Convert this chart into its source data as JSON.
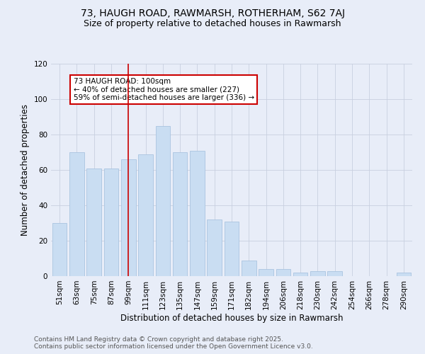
{
  "title_line1": "73, HAUGH ROAD, RAWMARSH, ROTHERHAM, S62 7AJ",
  "title_line2": "Size of property relative to detached houses in Rawmarsh",
  "xlabel": "Distribution of detached houses by size in Rawmarsh",
  "ylabel": "Number of detached properties",
  "categories": [
    "51sqm",
    "63sqm",
    "75sqm",
    "87sqm",
    "99sqm",
    "111sqm",
    "123sqm",
    "135sqm",
    "147sqm",
    "159sqm",
    "171sqm",
    "182sqm",
    "194sqm",
    "206sqm",
    "218sqm",
    "230sqm",
    "242sqm",
    "254sqm",
    "266sqm",
    "278sqm",
    "290sqm"
  ],
  "values": [
    30,
    70,
    61,
    61,
    66,
    69,
    85,
    70,
    71,
    32,
    31,
    9,
    4,
    4,
    2,
    3,
    3,
    0,
    0,
    0,
    2
  ],
  "bar_color": "#c9ddf2",
  "bar_edge_color": "#aac4e0",
  "vline_x": 4,
  "vline_color": "#cc0000",
  "annotation_text": "73 HAUGH ROAD: 100sqm\n← 40% of detached houses are smaller (227)\n59% of semi-detached houses are larger (336) →",
  "annotation_box_facecolor": "#ffffff",
  "annotation_box_edgecolor": "#cc0000",
  "ylim": [
    0,
    120
  ],
  "yticks": [
    0,
    20,
    40,
    60,
    80,
    100,
    120
  ],
  "grid_color": "#c8d0e0",
  "background_color": "#e8edf8",
  "footer_line1": "Contains HM Land Registry data © Crown copyright and database right 2025.",
  "footer_line2": "Contains public sector information licensed under the Open Government Licence v3.0.",
  "title_fontsize": 10,
  "subtitle_fontsize": 9,
  "axis_label_fontsize": 8.5,
  "tick_fontsize": 7.5,
  "annotation_fontsize": 7.5,
  "footer_fontsize": 6.5
}
